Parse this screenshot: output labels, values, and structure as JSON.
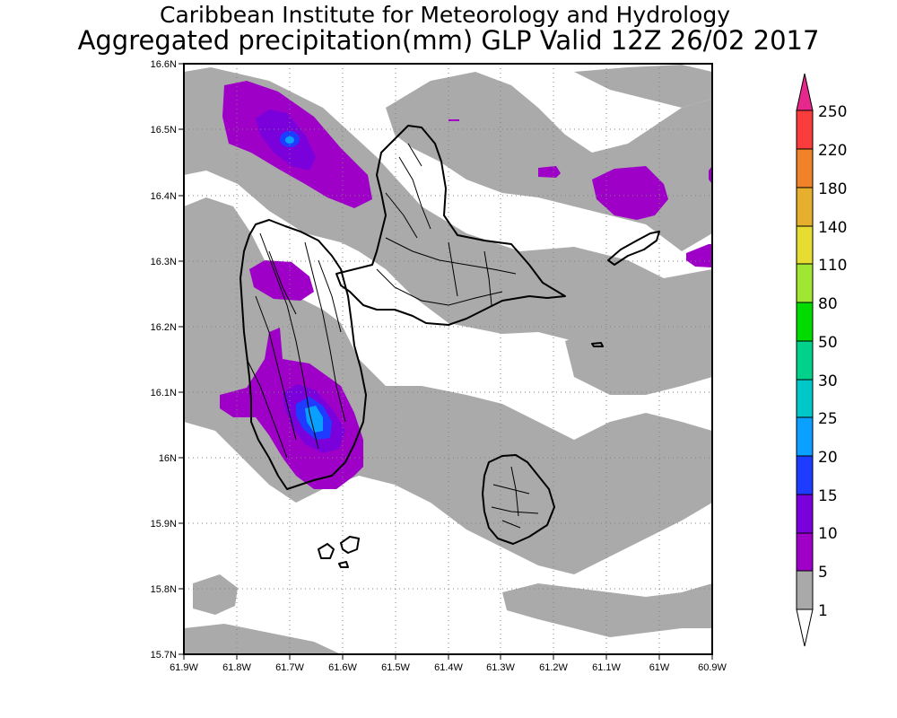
{
  "titles": {
    "line1": "Caribbean Institute for Meteorology and Hydrology",
    "line2": "Aggregated precipitation(mm) GLP Valid 12Z 26/02 2017"
  },
  "axes": {
    "lat_labels": [
      "16.6N",
      "16.5N",
      "16.4N",
      "16.3N",
      "16.2N",
      "16.1N",
      "16N",
      "15.9N",
      "15.8N",
      "15.7N"
    ],
    "lon_labels": [
      "61.9W",
      "61.8W",
      "61.7W",
      "61.6W",
      "61.5W",
      "61.4W",
      "61.3W",
      "61.2W",
      "61.1W",
      "61W",
      "60.9W"
    ],
    "lat_range": [
      15.7,
      16.6
    ],
    "lon_range": [
      -61.9,
      -60.9
    ]
  },
  "colorbar": {
    "levels": [
      "1",
      "5",
      "10",
      "15",
      "20",
      "25",
      "30",
      "50",
      "80",
      "110",
      "140",
      "180",
      "220",
      "250"
    ],
    "colors": [
      "#ffffff",
      "#a9a9a9",
      "#9e00c8",
      "#7a00dc",
      "#1e3cff",
      "#0aa0ff",
      "#00c8c8",
      "#00d28c",
      "#00dc00",
      "#a0e632",
      "#e6dc32",
      "#e6af2d",
      "#f08228",
      "#fa3c3c",
      "#e6288c"
    ]
  },
  "map": {
    "region": "Guadeloupe",
    "background_color": "#ffffff",
    "grid": "dotted"
  }
}
